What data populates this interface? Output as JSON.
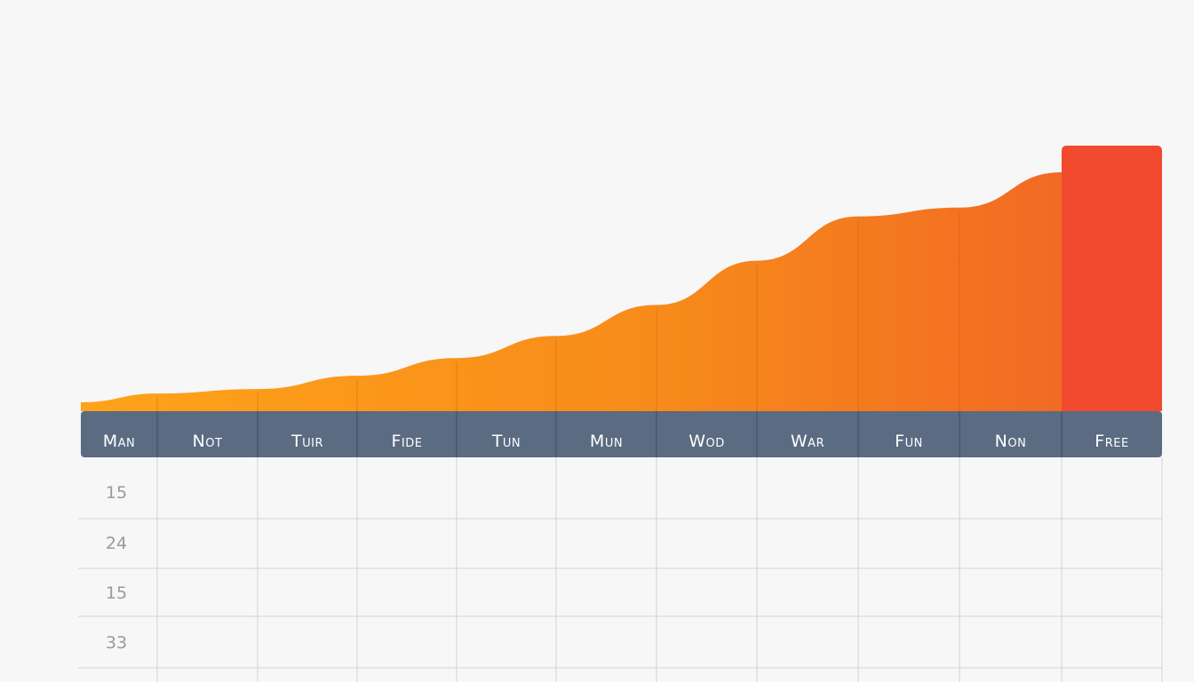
{
  "chart_data": {
    "type": "area",
    "categories": [
      "Man",
      "Not",
      "Tuir",
      "Fide",
      "Tun",
      "Mun",
      "Wod",
      "War",
      "Fun",
      "Non",
      "Free"
    ],
    "values": [
      1,
      2,
      2.5,
      4,
      6,
      8.5,
      12,
      17,
      22,
      23,
      30
    ],
    "ylim": [
      0,
      30
    ],
    "grid": true,
    "highlight_last": true,
    "gradient_colors": [
      "#ffa31a",
      "#f78a1a",
      "#f26a24"
    ],
    "highlight_color": "#f24a2e",
    "header_color": "#5a6b82",
    "grid_color": "#cfd3d8"
  },
  "table": {
    "row_labels": [
      "15",
      "24",
      "15",
      "33"
    ]
  }
}
